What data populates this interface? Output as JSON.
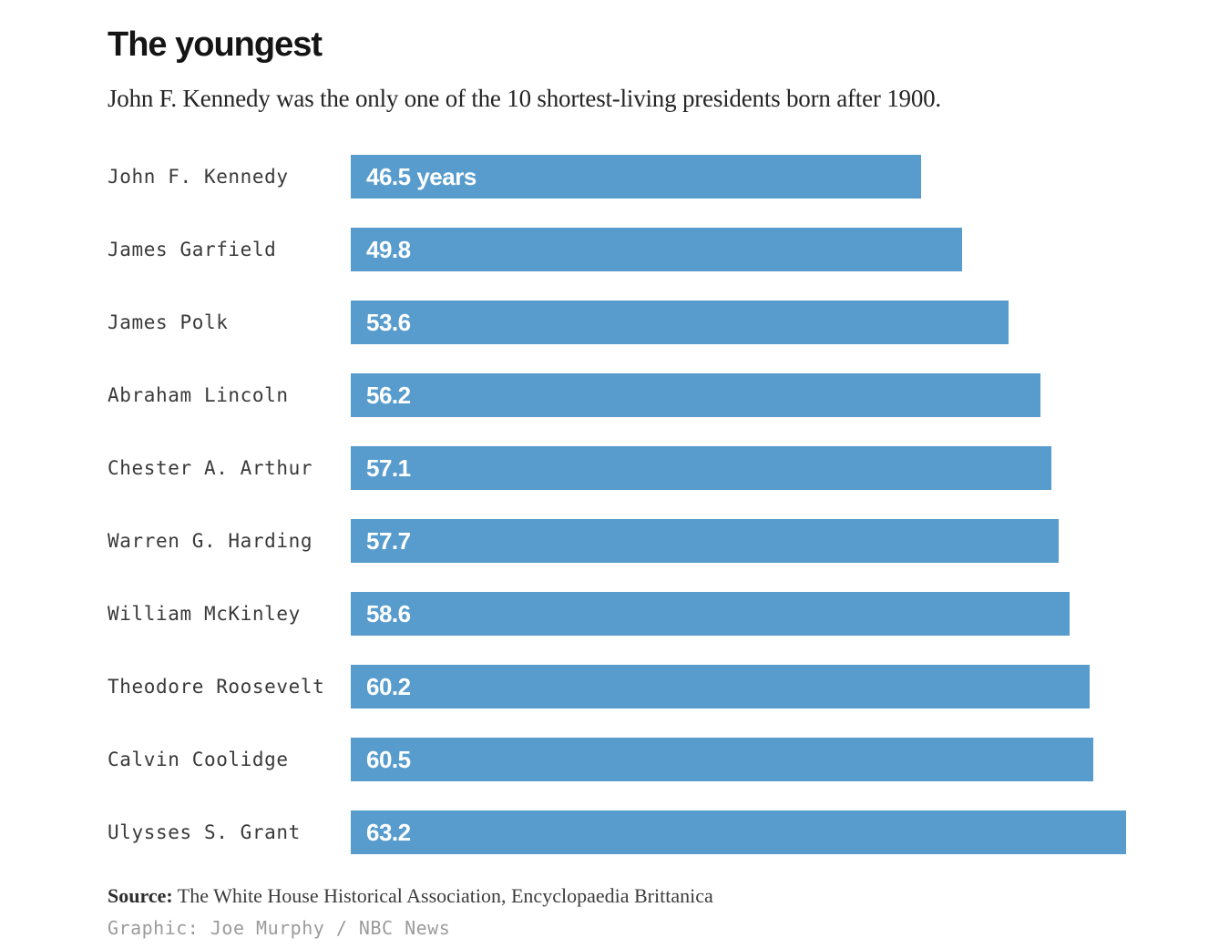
{
  "header": {
    "title": "The youngest",
    "subtitle": "John F. Kennedy was the only one of the 10 shortest-living presidents born after 1900."
  },
  "chart_data": {
    "type": "bar",
    "orientation": "horizontal",
    "title": "The youngest",
    "subtitle": "John F. Kennedy was the only one of the 10 shortest-living presidents born after 1900.",
    "xlabel": "",
    "ylabel": "",
    "xlim": [
      0,
      63.2
    ],
    "grid": false,
    "legend": false,
    "unit": "years",
    "bar_color": "#579ccd",
    "value_label_color": "#ffffff",
    "categories": [
      "John F. Kennedy",
      "James Garfield",
      "James Polk",
      "Abraham Lincoln",
      "Chester A. Arthur",
      "Warren G. Harding",
      "William McKinley",
      "Theodore Roosevelt",
      "Calvin Coolidge",
      "Ulysses S. Grant"
    ],
    "values": [
      46.5,
      49.8,
      53.6,
      56.2,
      57.1,
      57.7,
      58.6,
      60.2,
      60.5,
      63.2
    ],
    "bar_labels": [
      "46.5 years",
      "49.8",
      "53.6",
      "56.2",
      "57.1",
      "57.7",
      "58.6",
      "60.2",
      "60.5",
      "63.2"
    ]
  },
  "footer": {
    "source_label": "Source:",
    "source_text": " The White House Historical Association, Encyclopaedia Brittanica",
    "credit": "Graphic: Joe Murphy / NBC News"
  }
}
